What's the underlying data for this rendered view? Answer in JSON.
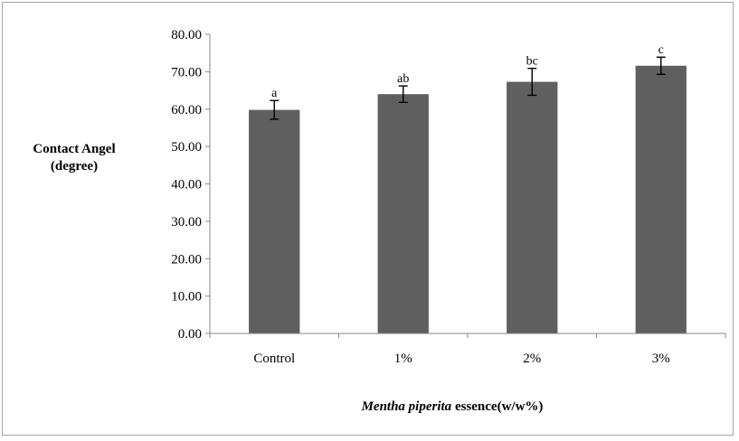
{
  "chart_data": {
    "type": "bar",
    "categories": [
      "Control",
      "1%",
      "2%",
      "3%"
    ],
    "values": [
      59.8,
      64.0,
      67.3,
      71.6
    ],
    "errors": [
      2.5,
      2.2,
      3.6,
      2.3
    ],
    "significance": [
      "a",
      "ab",
      "bc",
      "c"
    ],
    "ylabel_line1": "Contact Angel",
    "ylabel_line2": "(degree)",
    "xlabel_italic": "Mentha piperita",
    "xlabel_rest": " essence(w/w%)",
    "ylim": [
      0,
      80
    ],
    "yticks": [
      "0.00",
      "10.00",
      "20.00",
      "30.00",
      "40.00",
      "50.00",
      "60.00",
      "70.00",
      "80.00"
    ],
    "grid": false,
    "bar_color": "#5f5f5f"
  }
}
